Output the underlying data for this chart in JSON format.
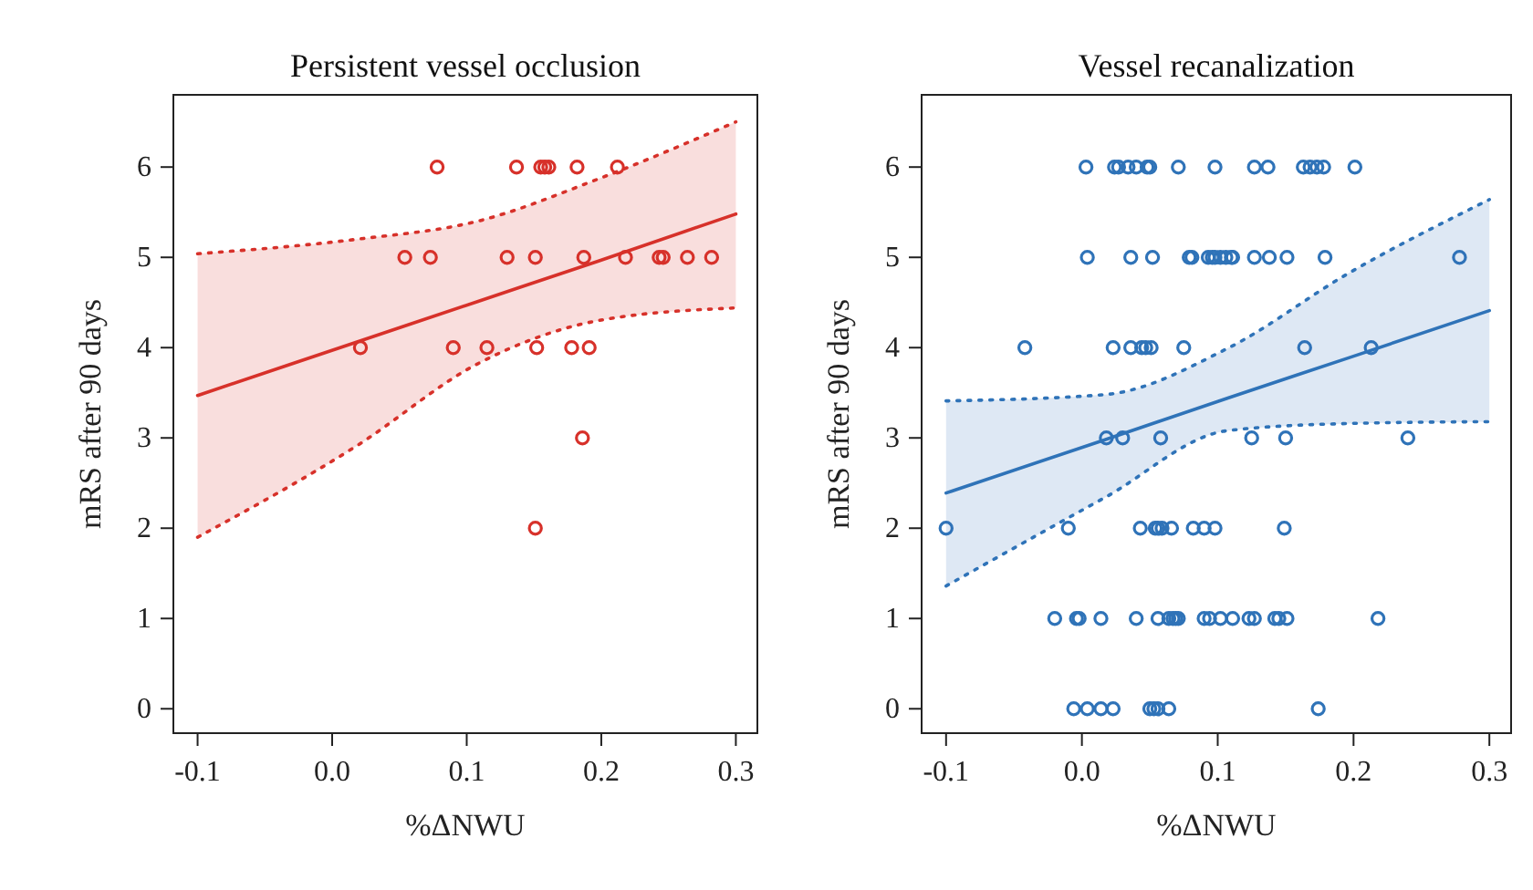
{
  "chart_data": [
    {
      "type": "scatter",
      "title": "Persistent vessel occlusion",
      "xlabel": "%ΔNWU",
      "ylabel": "mRS after 90 days",
      "xlim": [
        -0.118,
        0.316
      ],
      "ylim": [
        -0.27,
        6.8
      ],
      "xticks": [
        -0.1,
        {
          "value": 0,
          "label": "0.0"
        },
        0.1,
        0.2,
        0.3
      ],
      "yticks": [
        0,
        1,
        2,
        3,
        4,
        5,
        6
      ],
      "grid": false,
      "series": [
        {
          "color": "#d7312a",
          "marker": "circle",
          "x": [
            0.078,
            0.137,
            0.155,
            0.158,
            0.161,
            0.182,
            0.212,
            0.054,
            0.073,
            0.13,
            0.151,
            0.187,
            0.218,
            0.243,
            0.246,
            0.264,
            0.282,
            0.021,
            0.09,
            0.115,
            0.152,
            0.178,
            0.191,
            0.186,
            0.151
          ],
          "values": [
            6,
            6,
            6,
            6,
            6,
            6,
            6,
            5,
            5,
            5,
            5,
            5,
            5,
            5,
            5,
            5,
            5,
            4,
            4,
            4,
            4,
            4,
            4,
            3,
            2
          ]
        },
        {
          "type": "line",
          "color": "#d7312a",
          "marker": "none",
          "line_style": "solid",
          "x": [
            -0.1,
            0.018,
            0.108,
            0.198,
            0.3
          ],
          "values": [
            3.47,
            4.06,
            4.51,
            4.96,
            5.48
          ],
          "lower": [
            1.9,
            2.91,
            3.82,
            4.3,
            4.44
          ],
          "upper": [
            5.04,
            5.2,
            5.4,
            5.87,
            6.5
          ]
        },
        {
          "type": "line",
          "color": "#d7312a",
          "marker": "none",
          "line_style": "dotted",
          "x": [
            -0.1,
            0.018,
            0.108,
            0.198,
            0.3
          ],
          "values": [
            1.9,
            2.91,
            3.82,
            4.3,
            4.44
          ]
        },
        {
          "type": "line",
          "color": "#d7312a",
          "marker": "none",
          "line_style": "dotted",
          "x": [
            -0.1,
            0.018,
            0.108,
            0.198,
            0.3
          ],
          "values": [
            5.04,
            5.2,
            5.4,
            5.87,
            6.5
          ]
        }
      ]
    },
    {
      "type": "scatter",
      "title": "Vessel recanalization",
      "xlabel": "%ΔNWU",
      "ylabel": "mRS after 90 days",
      "xlim": [
        -0.118,
        0.316
      ],
      "ylim": [
        -0.27,
        6.8
      ],
      "xticks": [
        -0.1,
        {
          "value": 0,
          "label": "0.0"
        },
        0.1,
        0.2,
        0.3
      ],
      "yticks": [
        0,
        1,
        2,
        3,
        4,
        5,
        6
      ],
      "grid": false,
      "series": [
        {
          "color": "#2f73b8",
          "marker": "circle",
          "x": [
            0.003,
            0.024,
            0.027,
            0.034,
            0.04,
            0.048,
            0.05,
            0.071,
            0.098,
            0.127,
            0.137,
            0.163,
            0.168,
            0.173,
            0.178,
            0.201,
            0.004,
            0.036,
            0.052,
            0.079,
            0.081,
            0.093,
            0.096,
            0.098,
            0.102,
            0.106,
            0.11,
            0.111,
            0.127,
            0.138,
            0.151,
            0.179,
            0.278,
            -0.042,
            0.023,
            0.036,
            0.044,
            0.047,
            0.051,
            0.075,
            0.164,
            0.213,
            0.018,
            0.03,
            0.058,
            0.125,
            0.15,
            0.24,
            -0.1,
            -0.01,
            0.043,
            0.054,
            0.056,
            0.059,
            0.066,
            0.082,
            0.09,
            0.098,
            0.149,
            -0.02,
            -0.004,
            -0.002,
            0.014,
            0.04,
            0.056,
            0.064,
            0.067,
            0.069,
            0.071,
            0.09,
            0.094,
            0.102,
            0.111,
            0.123,
            0.127,
            0.142,
            0.145,
            0.151,
            0.218,
            -0.006,
            0.004,
            0.014,
            0.023,
            0.05,
            0.053,
            0.056,
            0.064,
            0.174
          ],
          "values": [
            6,
            6,
            6,
            6,
            6,
            6,
            6,
            6,
            6,
            6,
            6,
            6,
            6,
            6,
            6,
            6,
            5,
            5,
            5,
            5,
            5,
            5,
            5,
            5,
            5,
            5,
            5,
            5,
            5,
            5,
            5,
            5,
            5,
            4,
            4,
            4,
            4,
            4,
            4,
            4,
            4,
            4,
            3,
            3,
            3,
            3,
            3,
            3,
            2,
            2,
            2,
            2,
            2,
            2,
            2,
            2,
            2,
            2,
            2,
            1,
            1,
            1,
            1,
            1,
            1,
            1,
            1,
            1,
            1,
            1,
            1,
            1,
            1,
            1,
            1,
            1,
            1,
            1,
            1,
            0,
            0,
            0,
            0,
            0,
            0,
            0,
            0,
            0
          ]
        },
        {
          "type": "line",
          "color": "#2f73b8",
          "marker": "none",
          "line_style": "solid",
          "x": [
            -0.1,
            0.017,
            0.107,
            0.197,
            0.3
          ],
          "values": [
            2.39,
            2.98,
            3.44,
            3.89,
            4.41
          ],
          "lower": [
            1.36,
            2.34,
            3.08,
            3.16,
            3.18
          ],
          "upper": [
            3.41,
            3.48,
            3.99,
            4.83,
            5.64
          ]
        },
        {
          "type": "line",
          "color": "#2f73b8",
          "marker": "none",
          "line_style": "dotted",
          "x": [
            -0.1,
            0.017,
            0.107,
            0.197,
            0.3
          ],
          "values": [
            1.36,
            2.34,
            3.08,
            3.16,
            3.18
          ]
        },
        {
          "type": "line",
          "color": "#2f73b8",
          "marker": "none",
          "line_style": "dotted",
          "x": [
            -0.1,
            0.017,
            0.107,
            0.197,
            0.3
          ],
          "values": [
            3.41,
            3.48,
            3.99,
            4.83,
            5.64
          ]
        }
      ]
    }
  ]
}
